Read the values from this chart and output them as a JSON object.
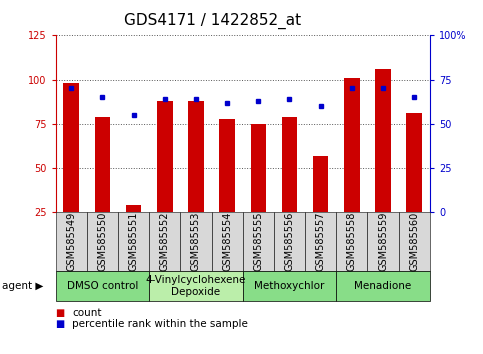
{
  "title": "GDS4171 / 1422852_at",
  "samples": [
    "GSM585549",
    "GSM585550",
    "GSM585551",
    "GSM585552",
    "GSM585553",
    "GSM585554",
    "GSM585555",
    "GSM585556",
    "GSM585557",
    "GSM585558",
    "GSM585559",
    "GSM585560"
  ],
  "count_values": [
    98,
    79,
    29,
    88,
    88,
    78,
    75,
    79,
    57,
    101,
    106,
    81
  ],
  "percentile_values": [
    70,
    65,
    55,
    64,
    64,
    62,
    63,
    64,
    60,
    70,
    70,
    65
  ],
  "ylim_left": [
    25,
    125
  ],
  "ylim_right": [
    0,
    100
  ],
  "yticks_left": [
    25,
    50,
    75,
    100,
    125
  ],
  "yticks_right": [
    0,
    25,
    50,
    75,
    100
  ],
  "ytick_labels_right": [
    "0",
    "25",
    "50",
    "75",
    "100%"
  ],
  "bar_color": "#cc0000",
  "dot_color": "#0000cc",
  "grid_color": "#555555",
  "bg_color": "#ffffff",
  "tick_bg_color": "#d8d8d8",
  "agent_groups": [
    {
      "label": "DMSO control",
      "start": 0,
      "end": 2,
      "color": "#88dd88"
    },
    {
      "label": "4-Vinylcyclohexene\nDepoxide",
      "start": 3,
      "end": 5,
      "color": "#bbeeaa"
    },
    {
      "label": "Methoxychlor",
      "start": 6,
      "end": 8,
      "color": "#88dd88"
    },
    {
      "label": "Menadione",
      "start": 9,
      "end": 11,
      "color": "#88dd88"
    }
  ],
  "legend_count_label": "count",
  "legend_pct_label": "percentile rank within the sample",
  "left_axis_color": "#cc0000",
  "right_axis_color": "#0000cc",
  "title_fontsize": 11,
  "tick_fontsize": 7,
  "agent_fontsize": 7.5,
  "legend_fontsize": 7.5
}
